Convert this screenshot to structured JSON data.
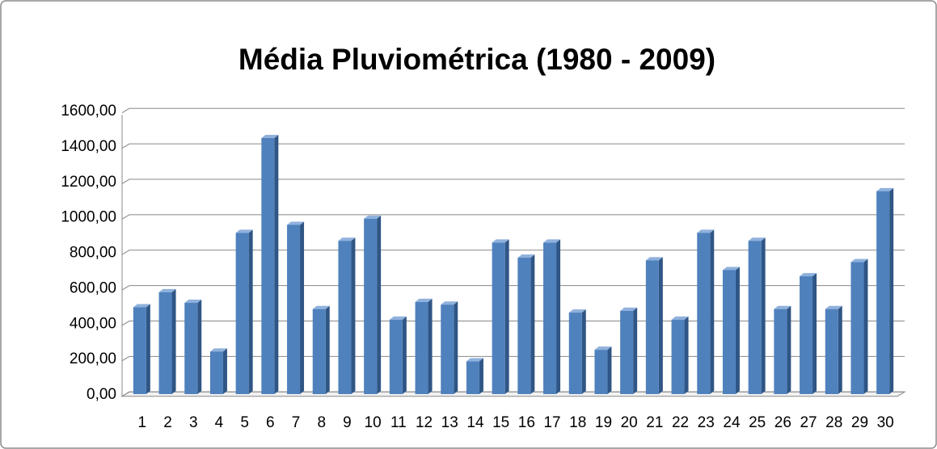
{
  "chart_data": {
    "type": "bar3d",
    "title": "Média  Pluviométrica (1980 - 2009)",
    "categories": [
      "1",
      "2",
      "3",
      "4",
      "5",
      "6",
      "7",
      "8",
      "9",
      "10",
      "11",
      "12",
      "13",
      "14",
      "15",
      "16",
      "17",
      "18",
      "19",
      "20",
      "21",
      "22",
      "23",
      "24",
      "25",
      "26",
      "27",
      "28",
      "29",
      "30"
    ],
    "values": [
      490,
      575,
      515,
      240,
      910,
      1445,
      955,
      480,
      865,
      990,
      420,
      520,
      505,
      185,
      855,
      770,
      855,
      460,
      250,
      470,
      755,
      420,
      910,
      700,
      865,
      480,
      665,
      480,
      745,
      1145
    ],
    "color": "#4f81bd",
    "ylim": [
      0,
      1600
    ],
    "yticks": [
      {
        "value": 0,
        "label": "0,00"
      },
      {
        "value": 200,
        "label": "200,00"
      },
      {
        "value": 400,
        "label": "400,00"
      },
      {
        "value": 600,
        "label": "600,00"
      },
      {
        "value": 800,
        "label": "800,00"
      },
      {
        "value": 1000,
        "label": "1000,00"
      },
      {
        "value": 1200,
        "label": "1200,00"
      },
      {
        "value": 1400,
        "label": "1400,00"
      },
      {
        "value": 1600,
        "label": "1600,00"
      }
    ],
    "grid": true
  }
}
